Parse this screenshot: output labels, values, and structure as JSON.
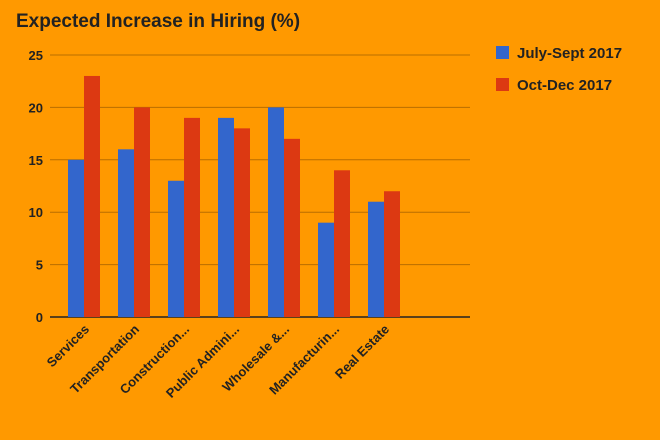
{
  "chart_data": {
    "type": "bar",
    "title": "Expected Increase in Hiring (%)",
    "xlabel": "",
    "ylabel": "",
    "categories": [
      "Services",
      "Transportation",
      "Construction...",
      "Public Admini...",
      "Wholesale &...",
      "Manufacturin...",
      "Real Estate"
    ],
    "series": [
      {
        "name": "July-Sept 2017",
        "color": "#3366CC",
        "values": [
          15,
          16,
          13,
          19,
          20,
          9,
          11
        ]
      },
      {
        "name": "Oct-Dec 2017",
        "color": "#DC3912",
        "values": [
          23,
          20,
          19,
          18,
          17,
          14,
          12
        ]
      }
    ],
    "ylim": [
      0,
      25
    ],
    "yticks": [
      0,
      5,
      10,
      15,
      20,
      25
    ],
    "grid": true,
    "legend": "right"
  }
}
